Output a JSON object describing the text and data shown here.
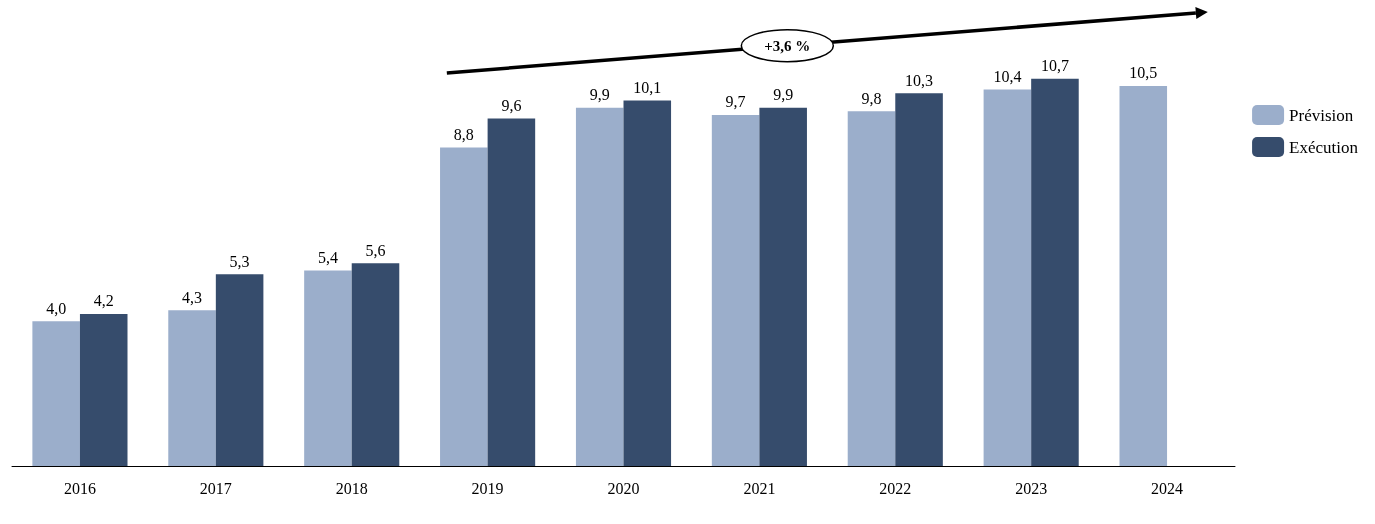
{
  "chart_data": {
    "type": "bar",
    "categories": [
      "2016",
      "2017",
      "2018",
      "2019",
      "2020",
      "2021",
      "2022",
      "2023",
      "2024"
    ],
    "series": [
      {
        "name": "Prévision",
        "color": "#9baecb",
        "values": [
          4.0,
          4.3,
          5.4,
          8.8,
          9.9,
          9.7,
          9.8,
          10.4,
          10.5
        ],
        "value_labels": [
          "4,0",
          "4,3",
          "5,4",
          "8,8",
          "9,9",
          "9,7",
          "9,8",
          "10,4",
          "10,5"
        ]
      },
      {
        "name": "Exécution",
        "color": "#364c6c",
        "values": [
          4.2,
          5.3,
          5.6,
          9.6,
          10.1,
          9.9,
          10.3,
          10.7,
          null
        ],
        "value_labels": [
          "4,2",
          "5,3",
          "5,6",
          "9,6",
          "10,1",
          "9,9",
          "10,3",
          "10,7",
          null
        ]
      }
    ],
    "annotations": [
      "+3,6 %"
    ],
    "legend": "right",
    "grid": false
  }
}
